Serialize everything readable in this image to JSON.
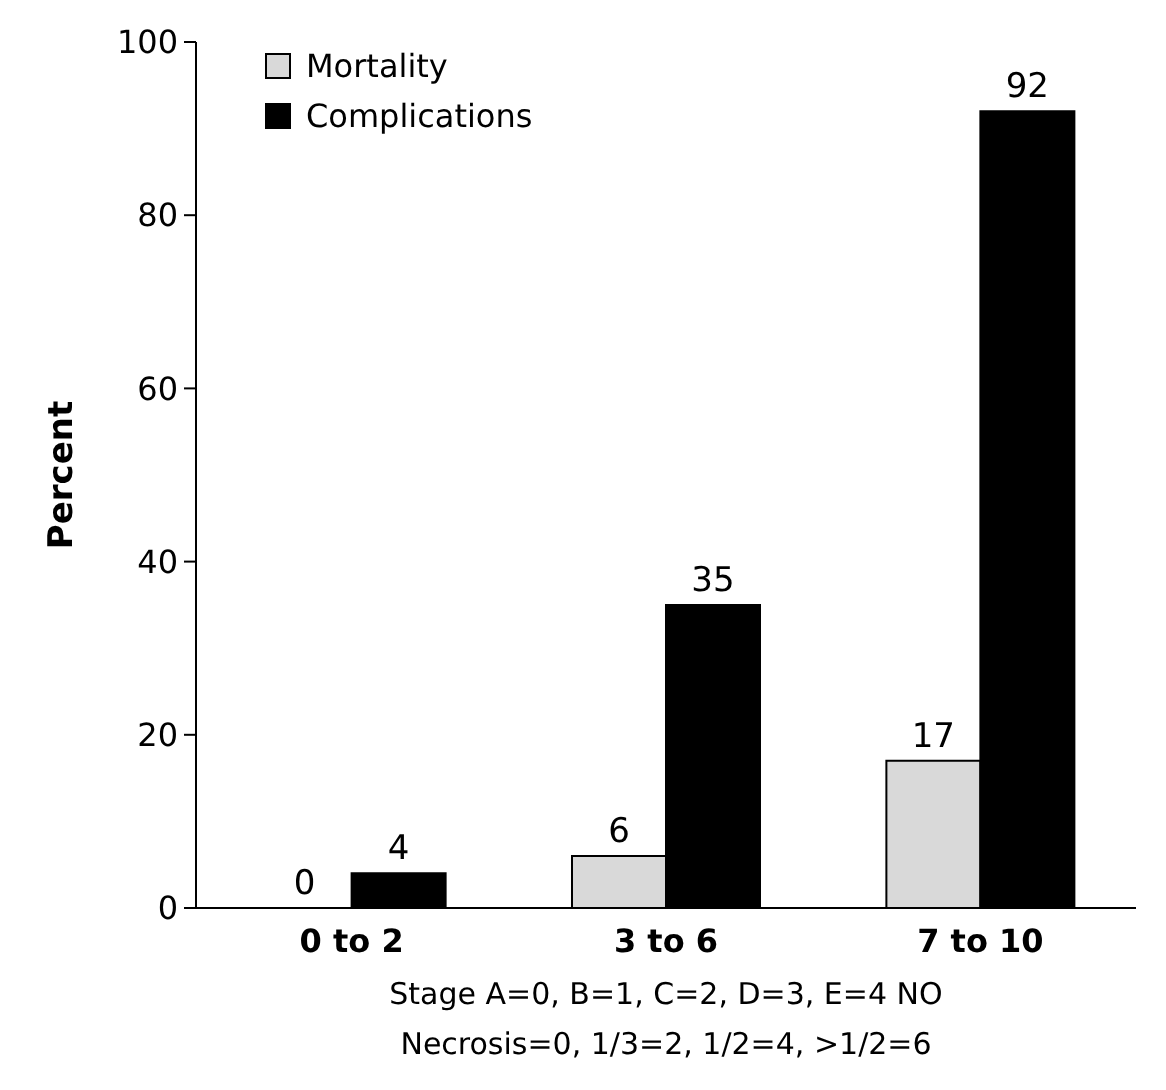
{
  "chart_data": {
    "type": "bar",
    "ylabel": "Percent",
    "xlabel": "Stage A=0, B=1, C=2, D=3, E=4 NO\nNecrosis=0, 1/3=2, 1/2=4, >1/2=6",
    "categories": [
      "0 to 2",
      "3 to 6",
      "7 to 10"
    ],
    "series": [
      {
        "name": "Mortality",
        "color": "#d9d9d9",
        "values": [
          0,
          6,
          17
        ]
      },
      {
        "name": "Complications",
        "color": "#000000",
        "values": [
          4,
          35,
          92
        ]
      }
    ],
    "ylim": [
      0,
      100
    ],
    "yticks": [
      0,
      20,
      40,
      60,
      80,
      100
    ],
    "grid": false,
    "legend": "top left",
    "data_labels": true
  }
}
